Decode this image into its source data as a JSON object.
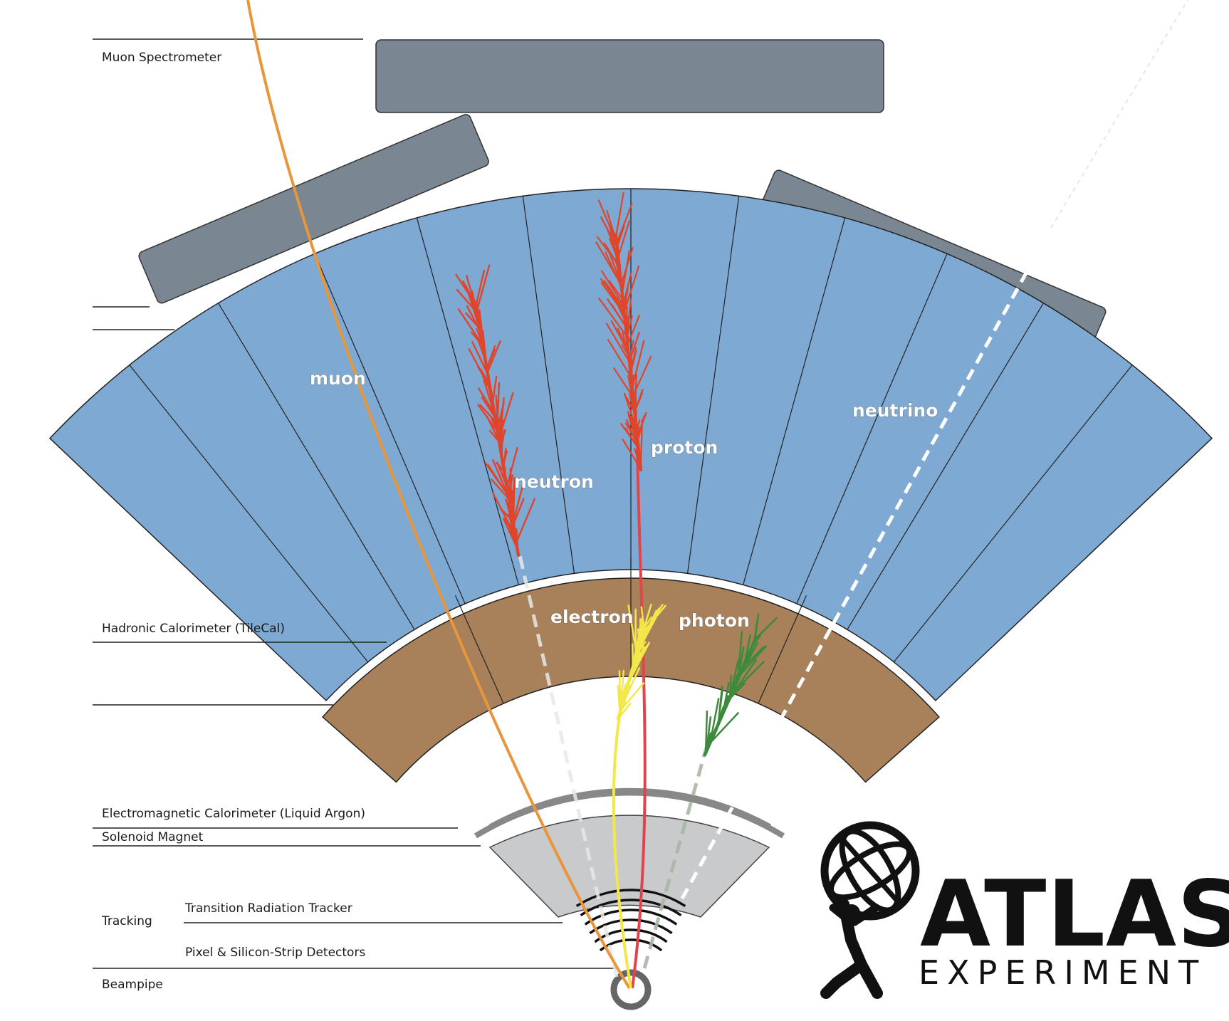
{
  "labels": {
    "muon_spectrometer": "Muon Spectrometer",
    "hadronic_calorimeter": "Hadronic Calorimeter (TileCal)",
    "em_calorimeter": "Electromagnetic Calorimeter (Liquid Argon)",
    "solenoid": "Solenoid Magnet",
    "tracking": "Tracking",
    "trt": "Transition Radiation Tracker",
    "pixel": "Pixel & Silicon-Strip Detectors",
    "beampipe": "Beampipe"
  },
  "particles": {
    "muon": "muon",
    "neutron": "neutron",
    "proton": "proton",
    "neutrino": "neutrino",
    "electron": "electron",
    "photon": "photon"
  },
  "logo": {
    "title": "ATLAS",
    "subtitle": "EXPERIMENT"
  },
  "colors": {
    "muon_track": "#e8963c",
    "hadron_shower": "#e0442a",
    "proton_track": "#e0444c",
    "electron_track": "#f2e84a",
    "photon_track": "#3d8a3c",
    "neutrino_track": "#ffffff",
    "muon_chamber": "#7a8792",
    "hadronic_cal": "#7ea9d3",
    "em_cal": "#a8815a",
    "tracker": "#c9cacc"
  },
  "icons": {
    "logo_figure": "atlas-titan-globe-icon"
  }
}
